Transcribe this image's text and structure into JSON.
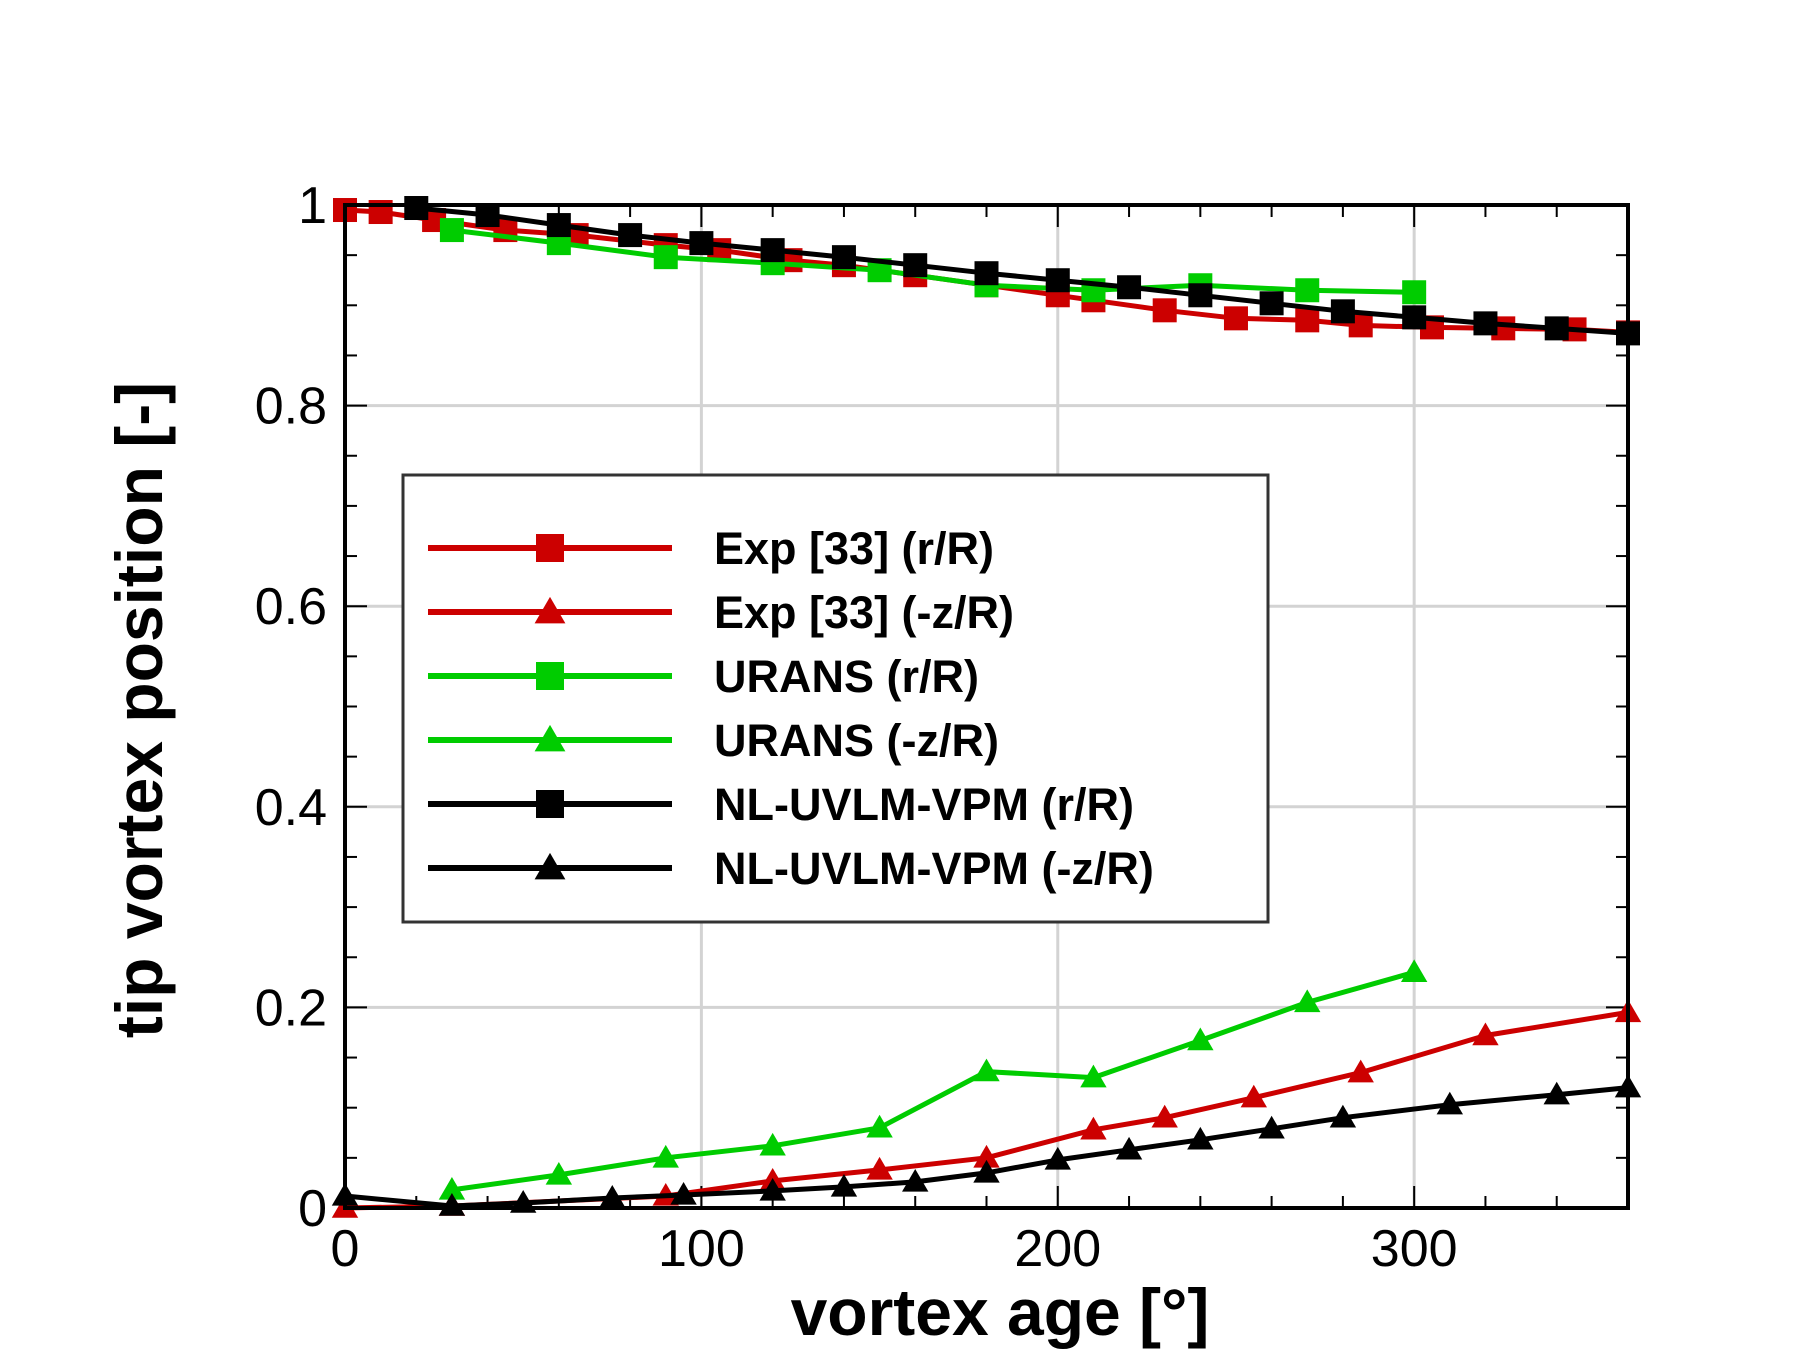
{
  "chart_data": {
    "type": "line",
    "title": "",
    "xlabel": "vortex age [°]",
    "ylabel": "tip vortex position [-]",
    "xlim": [
      0,
      360
    ],
    "ylim": [
      0,
      1
    ],
    "xticks": [
      0,
      100,
      200,
      300
    ],
    "yticks": [
      0,
      0.2,
      0.4,
      0.6,
      0.8,
      1
    ],
    "xtick_labels": [
      "0",
      "100",
      "200",
      "300"
    ],
    "ytick_labels": [
      "0",
      "0.2",
      "0.4",
      "0.6",
      "0.8",
      "1"
    ],
    "grid": true,
    "legend_position": "center-left",
    "series": [
      {
        "name": "Exp [33] (r/R)",
        "color": "#cc0000",
        "marker": "square",
        "x": [
          0,
          10,
          25,
          45,
          65,
          90,
          105,
          125,
          140,
          160,
          180,
          200,
          210,
          230,
          250,
          270,
          285,
          305,
          325,
          345,
          360
        ],
        "y": [
          0.995,
          0.993,
          0.985,
          0.975,
          0.97,
          0.96,
          0.955,
          0.945,
          0.94,
          0.93,
          0.92,
          0.91,
          0.905,
          0.895,
          0.887,
          0.885,
          0.88,
          0.878,
          0.877,
          0.876,
          0.873
        ]
      },
      {
        "name": "Exp [33] (-z/R)",
        "color": "#cc0000",
        "marker": "triangle",
        "x": [
          0,
          30,
          90,
          120,
          150,
          180,
          210,
          230,
          255,
          285,
          320,
          360
        ],
        "y": [
          0.0,
          0.002,
          0.012,
          0.027,
          0.038,
          0.05,
          0.078,
          0.09,
          0.11,
          0.135,
          0.172,
          0.195
        ]
      },
      {
        "name": "URANS (r/R)",
        "color": "#00cc00",
        "marker": "square",
        "x": [
          30,
          60,
          90,
          120,
          150,
          180,
          210,
          240,
          270,
          300
        ],
        "y": [
          0.975,
          0.962,
          0.948,
          0.942,
          0.935,
          0.92,
          0.915,
          0.92,
          0.915,
          0.913
        ]
      },
      {
        "name": "URANS (-z/R)",
        "color": "#00cc00",
        "marker": "triangle",
        "x": [
          30,
          60,
          90,
          120,
          150,
          180,
          210,
          240,
          270,
          300
        ],
        "y": [
          0.018,
          0.033,
          0.05,
          0.062,
          0.08,
          0.136,
          0.13,
          0.167,
          0.205,
          0.235
        ]
      },
      {
        "name": "NL-UVLM-VPM (r/R)",
        "color": "#000000",
        "marker": "square",
        "x": [
          20,
          40,
          60,
          80,
          100,
          120,
          140,
          160,
          180,
          200,
          220,
          240,
          260,
          280,
          300,
          320,
          340,
          360
        ],
        "y": [
          0.997,
          0.99,
          0.98,
          0.97,
          0.962,
          0.955,
          0.948,
          0.94,
          0.932,
          0.925,
          0.918,
          0.91,
          0.902,
          0.894,
          0.888,
          0.882,
          0.877,
          0.872
        ]
      },
      {
        "name": "NL-UVLM-VPM (-z/R)",
        "color": "#000000",
        "marker": "triangle",
        "x": [
          0,
          30,
          50,
          75,
          95,
          120,
          140,
          160,
          180,
          200,
          220,
          240,
          260,
          280,
          310,
          340,
          360
        ],
        "y": [
          0.012,
          0.002,
          0.005,
          0.01,
          0.013,
          0.017,
          0.021,
          0.026,
          0.035,
          0.048,
          0.058,
          0.068,
          0.079,
          0.09,
          0.103,
          0.113,
          0.12
        ]
      }
    ]
  }
}
